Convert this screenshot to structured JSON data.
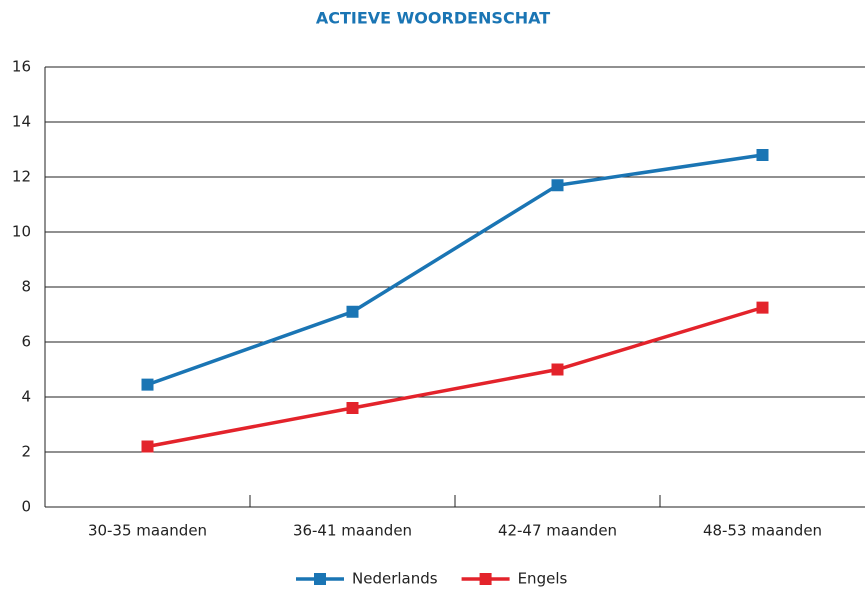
{
  "chart_data": {
    "type": "line",
    "title": "ACTIEVE WOORDENSCHAT",
    "categories": [
      "30-35 maanden",
      "36-41 maanden",
      "42-47 maanden",
      "48-53 maanden"
    ],
    "series": [
      {
        "name": "Nederlands",
        "color": "#1a75b4",
        "values": [
          4.45,
          7.1,
          11.7,
          12.8
        ]
      },
      {
        "name": "Engels",
        "color": "#e3232b",
        "values": [
          2.2,
          3.6,
          5.0,
          7.25
        ]
      }
    ],
    "ylim": [
      0,
      16
    ],
    "yticks": [
      0,
      2,
      4,
      6,
      8,
      10,
      12,
      14,
      16
    ],
    "grid": true,
    "legend": "bottom"
  }
}
